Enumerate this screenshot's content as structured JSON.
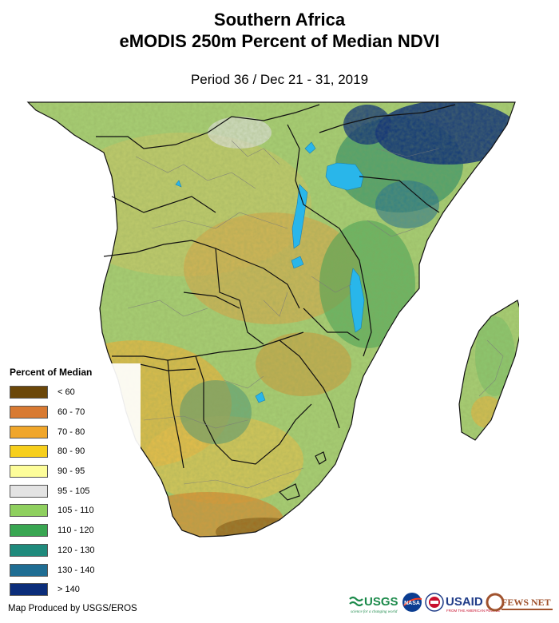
{
  "title_line1": "Southern Africa",
  "title_line2": "eMODIS 250m Percent of Median NDVI",
  "period": "Period 36 / Dec 21 - 31, 2019",
  "legend": {
    "title": "Percent of Median",
    "items": [
      {
        "label": "< 60",
        "color": "#6b4709"
      },
      {
        "label": "60 - 70",
        "color": "#d87a32"
      },
      {
        "label": "70 - 80",
        "color": "#f0a62a"
      },
      {
        "label": "80 - 90",
        "color": "#f7cf1c"
      },
      {
        "label": "90 - 95",
        "color": "#fdfd9a"
      },
      {
        "label": "95 - 105",
        "color": "#e3e3e3"
      },
      {
        "label": "105 - 110",
        "color": "#8fd05f"
      },
      {
        "label": "110 - 120",
        "color": "#39a652"
      },
      {
        "label": "120 - 130",
        "color": "#1f8a7c"
      },
      {
        "label": "130 - 140",
        "color": "#1f6d93"
      },
      {
        "label": "> 140",
        "color": "#0b2d7a"
      }
    ]
  },
  "credit": "Map Produced by USGS/EROS",
  "logos": {
    "usgs": "USGS",
    "usgs_tagline": "science for a changing world",
    "nasa": "NASA",
    "usaid": "USAID",
    "usaid_tagline": "FROM THE AMERICAN PEOPLE",
    "fewsnet": "FEWS NET"
  }
}
